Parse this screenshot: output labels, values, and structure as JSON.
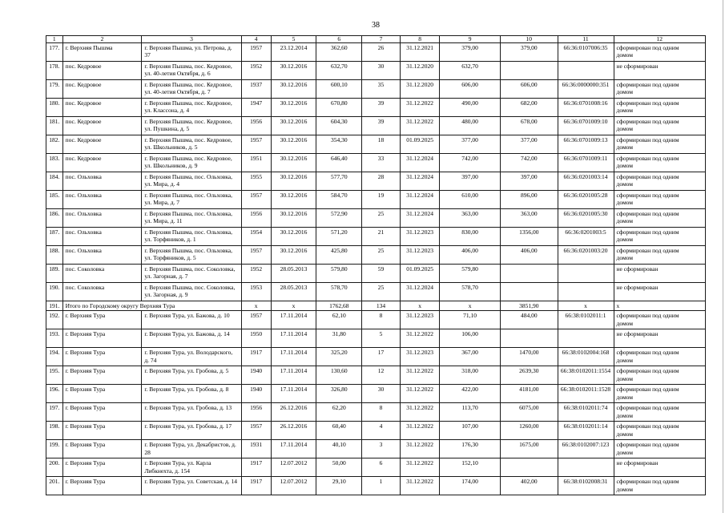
{
  "page": {
    "number": "38"
  },
  "table": {
    "headers": [
      "1",
      "2",
      "3",
      "4",
      "5",
      "6",
      "7",
      "8",
      "9",
      "10",
      "11",
      "12"
    ],
    "rows": [
      {
        "c": [
          "177.",
          "г. Верхняя Пышма",
          "г. Верхняя Пышма, ул. Петрова, д. 37",
          "1957",
          "23.12.2014",
          "362,60",
          "26",
          "31.12.2021",
          "379,00",
          "379,00",
          "66:36:0107006:35",
          "сформирован под одним домом"
        ]
      },
      {
        "c": [
          "178.",
          "пос. Кедровое",
          "г. Верхняя Пышма, пос. Кедровое, ул. 40-летия Октября, д. 6",
          "1952",
          "30.12.2016",
          "632,70",
          "30",
          "31.12.2020",
          "632,70",
          "",
          "",
          "не сформирован"
        ]
      },
      {
        "c": [
          "179.",
          "пос. Кедровое",
          "г. Верхняя Пышма, пос. Кедровое, ул. 40-летия Октября, д. 7",
          "1937",
          "30.12.2016",
          "600,10",
          "35",
          "31.12.2020",
          "606,00",
          "606,00",
          "66:36:0000000:351",
          "сформирован под одним домом"
        ]
      },
      {
        "c": [
          "180.",
          "пос. Кедровое",
          "г. Верхняя Пышма, пос. Кедровое, ул. Классона, д. 4",
          "1947",
          "30.12.2016",
          "670,80",
          "39",
          "31.12.2022",
          "490,00",
          "682,00",
          "66:36:0701008:16",
          "сформирован под одним домом"
        ]
      },
      {
        "c": [
          "181.",
          "пос. Кедровое",
          "г. Верхняя Пышма, пос. Кедровое, ул. Пушкина, д. 5",
          "1956",
          "30.12.2016",
          "604,30",
          "39",
          "31.12.2022",
          "480,00",
          "678,00",
          "66:36:0701009:10",
          "сформирован под одним домом"
        ]
      },
      {
        "c": [
          "182.",
          "пос. Кедровое",
          "г. Верхняя Пышма, пос. Кедровое, ул. Школьников, д. 5",
          "1957",
          "30.12.2016",
          "354,30",
          "18",
          "01.09.2025",
          "377,00",
          "377,00",
          "66:36:0701009:13",
          "сформирован под одним домом"
        ]
      },
      {
        "c": [
          "183.",
          "пос. Кедровое",
          "г. Верхняя Пышма, пос. Кедровое, ул. Школьников, д. 9",
          "1951",
          "30.12.2016",
          "646,40",
          "33",
          "31.12.2024",
          "742,00",
          "742,00",
          "66:36:0701009:11",
          "сформирован под одним домом"
        ]
      },
      {
        "c": [
          "184.",
          "пос. Ольховка",
          "г. Верхняя Пышма, пос. Ольховка, ул. Мира, д. 4",
          "1955",
          "30.12.2016",
          "577,70",
          "28",
          "31.12.2024",
          "397,00",
          "397,00",
          "66:36:0201003:14",
          "сформирован под одним домом"
        ]
      },
      {
        "c": [
          "185.",
          "пос. Ольховка",
          "г. Верхняя Пышма, пос. Ольховка, ул. Мира, д. 7",
          "1957",
          "30.12.2016",
          "584,70",
          "19",
          "31.12.2024",
          "610,00",
          "896,00",
          "66:36:0201005:28",
          "сформирован под одним домом"
        ]
      },
      {
        "c": [
          "186.",
          "пос. Ольховка",
          "г. Верхняя Пышма, пос. Ольховка, ул. Мира, д. 11",
          "1956",
          "30.12.2016",
          "572,90",
          "25",
          "31.12.2024",
          "363,00",
          "363,00",
          "66:36:0201005:30",
          "сформирован под одним домом"
        ]
      },
      {
        "c": [
          "187.",
          "пос. Ольховка",
          "г. Верхняя Пышма, пос. Ольховка, ул. Торфяников, д. 1",
          "1954",
          "30.12.2016",
          "571,20",
          "21",
          "31.12.2023",
          "830,00",
          "1356,00",
          "66:36:0201003:5",
          "сформирован под одним домом"
        ]
      },
      {
        "c": [
          "188.",
          "пос. Ольховка",
          "г. Верхняя Пышма, пос. Ольховка, ул. Торфяников, д. 5",
          "1957",
          "30.12.2016",
          "425,80",
          "25",
          "31.12.2023",
          "406,00",
          "406,00",
          "66:36:0201003:20",
          "сформирован под одним домом"
        ]
      },
      {
        "c": [
          "189.",
          "пос. Соколовка",
          "г. Верхняя Пышма, пос. Соколовка, ул. Загорная, д. 7",
          "1952",
          "28.05.2013",
          "579,80",
          "59",
          "01.09.2025",
          "579,80",
          "",
          "",
          "не сформирован"
        ]
      },
      {
        "c": [
          "190.",
          "пос. Соколовка",
          "г. Верхняя Пышма, пос. Соколовка, ул. Загорная, д. 9",
          "1953",
          "28.05.2013",
          "578,70",
          "25",
          "31.12.2024",
          "578,70",
          "",
          "",
          "не сформирован"
        ]
      },
      {
        "total": true,
        "c": [
          "191.",
          "Итого по Городскому округу Верхняя Тура",
          "x",
          "x",
          "1762,68",
          "134",
          "x",
          "x",
          "3851,90",
          "x",
          "x"
        ]
      },
      {
        "c": [
          "192.",
          "г. Верхняя Тура",
          "г. Верхняя Тура, ул. Бажова, д. 10",
          "1957",
          "17.11.2014",
          "62,10",
          "8",
          "31.12.2023",
          "71,10",
          "484,00",
          "66:38:0102011:1",
          "сформирован под одним домом"
        ]
      },
      {
        "c": [
          "193.",
          "г. Верхняя Тура",
          "г. Верхняя Тура, ул. Бажова, д. 14",
          "1950",
          "17.11.2014",
          "31,80",
          "5",
          "31.12.2022",
          "106,00",
          "",
          "",
          "не сформирован"
        ]
      },
      {
        "c": [
          "194.",
          "г. Верхняя Тура",
          "г. Верхняя Тура, ул. Володарского, д. 74",
          "1917",
          "17.11.2014",
          "325,20",
          "17",
          "31.12.2023",
          "367,00",
          "1470,00",
          "66:38:0102004:168",
          "сформирован под одним домом"
        ]
      },
      {
        "c": [
          "195.",
          "г. Верхняя Тура",
          "г. Верхняя Тура, ул. Гробова, д. 5",
          "1940",
          "17.11.2014",
          "130,60",
          "12",
          "31.12.2022",
          "318,00",
          "2639,30",
          "66:38:0102011:1554",
          "сформирован под одним домом"
        ]
      },
      {
        "c": [
          "196.",
          "г. Верхняя Тура",
          "г. Верхняя Тура, ул. Гробова, д. 8",
          "1940",
          "17.11.2014",
          "326,80",
          "30",
          "31.12.2022",
          "422,00",
          "4181,00",
          "66:38:0102011:1528",
          "сформирован под одним домом"
        ]
      },
      {
        "c": [
          "197.",
          "г. Верхняя Тура",
          "г. Верхняя Тура, ул. Гробова, д. 13",
          "1956",
          "26.12.2016",
          "62,20",
          "8",
          "31.12.2022",
          "113,70",
          "6075,00",
          "66:38:0102011:74",
          "сформирован под одним домом"
        ]
      },
      {
        "c": [
          "198.",
          "г. Верхняя Тура",
          "г. Верхняя Тура, ул. Гробова, д. 17",
          "1957",
          "26.12.2016",
          "60,40",
          "4",
          "31.12.2022",
          "107,00",
          "1260,00",
          "66:38:0102011:14",
          "сформирован под одним домом"
        ]
      },
      {
        "c": [
          "199.",
          "г. Верхняя Тура",
          "г. Верхняя Тура, ул. Декабристов, д. 28",
          "1931",
          "17.11.2014",
          "40,10",
          "3",
          "31.12.2022",
          "176,30",
          "1675,00",
          "66:38:0102007:123",
          "сформирован под одним домом"
        ]
      },
      {
        "c": [
          "200.",
          "г. Верхняя Тура",
          "г. Верхняя Тура, ул. Карла Либкнехта, д. 154",
          "1917",
          "12.07.2012",
          "50,00",
          "6",
          "31.12.2022",
          "152,10",
          "",
          "",
          "не сформирован"
        ]
      },
      {
        "c": [
          "201.",
          "г. Верхняя Тура",
          "г. Верхняя Тура, ул. Советская, д. 14",
          "1917",
          "12.07.2012",
          "29,10",
          "1",
          "31.12.2022",
          "174,00",
          "402,00",
          "66:38:0102008:31",
          "сформирован под одним домом"
        ]
      }
    ]
  }
}
